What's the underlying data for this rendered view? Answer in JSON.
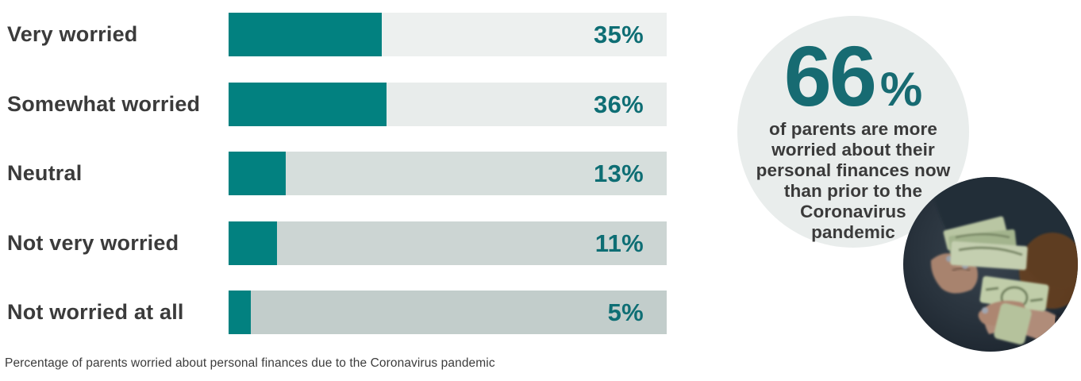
{
  "chart_data": {
    "type": "bar",
    "orientation": "horizontal",
    "title": "",
    "caption": "Percentage of parents worried about personal finances due to the Coronavirus pandemic",
    "categories": [
      "Very worried",
      "Somewhat worried",
      "Neutral",
      "Not very worried",
      "Not worried at all"
    ],
    "values": [
      35,
      36,
      13,
      11,
      5
    ],
    "value_labels": [
      "35%",
      "36%",
      "13%",
      "11%",
      "5%"
    ],
    "xlim": [
      0,
      100
    ],
    "grid": false,
    "legend": false,
    "bar_color": "#028180",
    "value_label_color": "#0e6e74",
    "category_label_color": "#3b3b3b",
    "track_colors": [
      "#edf0ef",
      "#e8eceb",
      "#d6dedc",
      "#ccd5d3",
      "#c2cdcb"
    ]
  },
  "callout": {
    "number": "66",
    "percent_sign": "%",
    "lines": [
      "of parents are more",
      "worried about their",
      "personal finances now",
      "than prior to the",
      "Coronavirus",
      "pandemic"
    ],
    "number_color": "#176b72",
    "text_color": "#3a3a3a",
    "circle_color": "#e9edec"
  },
  "photo": {
    "alt": "Person counting US dollar bills with both hands"
  }
}
